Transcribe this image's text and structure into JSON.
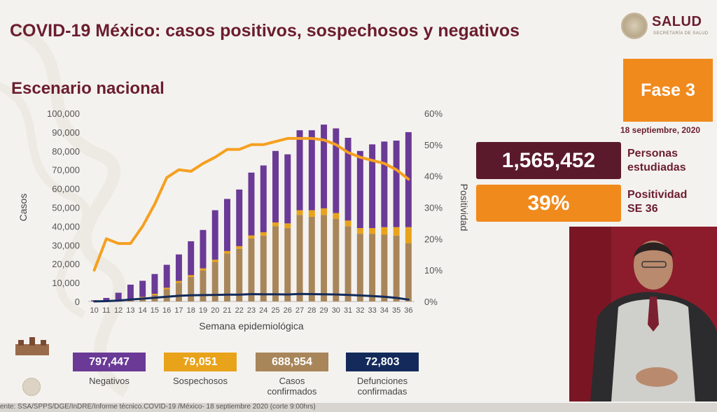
{
  "header": {
    "title": "COVID-19 México: casos positivos, sospechosos y negativos",
    "subtitle": "Escenario nacional",
    "logo_text": "SALUD",
    "logo_subtext": "SECRETARÍA DE SALUD"
  },
  "phase": {
    "label": "Fase 3",
    "date": "18 septiembre, 2020"
  },
  "stats": {
    "people_value": "1,565,452",
    "people_label_line1": "Personas",
    "people_label_line2": "estudiadas",
    "positivity_value": "39%",
    "positivity_label_line1": "Positividad",
    "positivity_label_line2": "SE 36"
  },
  "legend": [
    {
      "value": "797,447",
      "label": "Negativos",
      "color": "#6a3a96"
    },
    {
      "value": "79,051",
      "label": "Sospechosos",
      "color": "#e8a31b"
    },
    {
      "value": "688,954",
      "label": "Casos confirmados",
      "color": "#a8865a"
    },
    {
      "value": "72,803",
      "label": "Defunciones confirmadas",
      "color": "#132a5a"
    }
  ],
  "source_text": "ente: SSA/SPPS/DGE/InDRE/Informe técnico.COVID-19 /México- 18 septiembre 2020 (corte 9:00hrs)",
  "colors": {
    "title": "#6b1d2e",
    "orange": "#f08a1d",
    "dark_box": "#5a1a2b",
    "video_bg": "#8c1c2b"
  },
  "chart_data": {
    "type": "bar",
    "xlabel": "Semana epidemiológica",
    "ylabel": "Casos",
    "y2label": "Positividad",
    "ylim": [
      0,
      100000
    ],
    "y2lim": [
      0,
      60
    ],
    "y_ticks": [
      "0",
      "10,000",
      "20,000",
      "30,000",
      "40,000",
      "50,000",
      "60,000",
      "70,000",
      "80,000",
      "90,000",
      "100,000"
    ],
    "y2_ticks": [
      "0%",
      "10%",
      "20%",
      "30%",
      "40%",
      "50%",
      "60%"
    ],
    "grid": false,
    "categories": [
      "10",
      "11",
      "12",
      "13",
      "14",
      "15",
      "16",
      "17",
      "18",
      "19",
      "20",
      "21",
      "22",
      "23",
      "24",
      "25",
      "26",
      "27",
      "28",
      "29",
      "30",
      "31",
      "32",
      "33",
      "34",
      "35",
      "36"
    ],
    "series": [
      {
        "name": "Casos confirmados",
        "color": "#a8865a",
        "values": [
          100,
          300,
          700,
          1200,
          2000,
          3500,
          6500,
          10000,
          13000,
          16500,
          21000,
          25500,
          28000,
          33500,
          35000,
          40000,
          39000,
          46000,
          45000,
          46000,
          44000,
          40000,
          36000,
          36000,
          35500,
          35000,
          31000
        ]
      },
      {
        "name": "Sospechosos",
        "color": "#e8a31b",
        "values": [
          50,
          80,
          150,
          250,
          400,
          600,
          800,
          900,
          1000,
          1100,
          1200,
          1300,
          1400,
          1600,
          1800,
          2000,
          2500,
          2500,
          3500,
          3500,
          3000,
          3000,
          3000,
          3000,
          4000,
          4500,
          8500
        ]
      },
      {
        "name": "Negativos",
        "color": "#6a3a96",
        "values": [
          500,
          1500,
          3800,
          7500,
          8600,
          10500,
          12200,
          14100,
          18000,
          20400,
          26300,
          27700,
          30100,
          33400,
          35500,
          38000,
          36700,
          42500,
          42500,
          44500,
          45000,
          44000,
          41000,
          44500,
          45500,
          46000,
          50500
        ]
      },
      {
        "name": "Defunciones confirmadas",
        "type": "line",
        "color": "#132a5a",
        "values": [
          50,
          200,
          500,
          1000,
          1500,
          2000,
          2500,
          3000,
          3300,
          3400,
          3500,
          3600,
          3600,
          3900,
          3800,
          3800,
          3700,
          4000,
          3900,
          3800,
          3700,
          3500,
          3200,
          2900,
          2500,
          1900,
          1000
        ]
      },
      {
        "name": "Positividad",
        "type": "line",
        "axis": "y2",
        "color": "#f5a020",
        "values": [
          10,
          20,
          18.5,
          18.5,
          24,
          31,
          39.5,
          42,
          41.5,
          44,
          46,
          48.5,
          48.5,
          50,
          50,
          51,
          52,
          52,
          52,
          51.5,
          50,
          47.5,
          46,
          45,
          44,
          42,
          39
        ]
      }
    ]
  }
}
